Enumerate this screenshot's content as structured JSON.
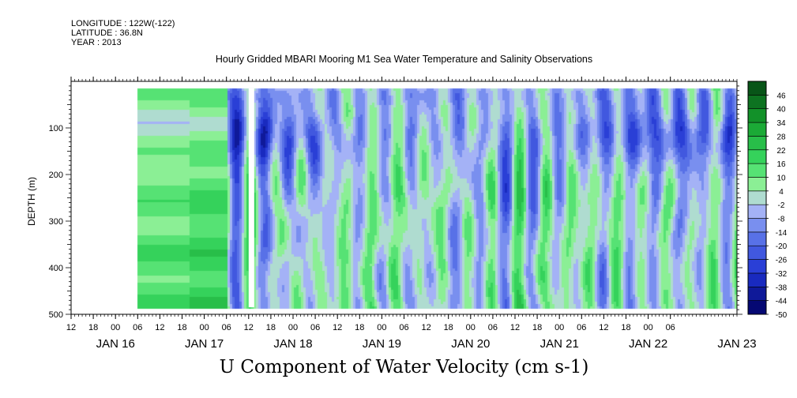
{
  "header": {
    "longitude": "LONGITUDE : 122W(-122)",
    "latitude": "LATITUDE : 36.8N",
    "year": "YEAR : 2013"
  },
  "chart_data": {
    "type": "heatmap",
    "title": "Hourly Gridded MBARI Mooring M1 Sea Water Temperature and Salinity Observations",
    "xlabel": "U Component of Water Velocity (cm s-1)",
    "ylabel": "DEPTH (m)",
    "y_axis": {
      "range": [
        0,
        500
      ],
      "inverted": true,
      "ticks": [
        100,
        200,
        300,
        400,
        500
      ]
    },
    "x_axis": {
      "range_hours": [
        -12,
        168
      ],
      "hour_ticks": [
        {
          "h": 12,
          "label": "12"
        },
        {
          "h": 18,
          "label": "18"
        },
        {
          "h": 0,
          "label": "00"
        },
        {
          "h": 6,
          "label": "06"
        },
        {
          "h": 12,
          "label": "12"
        },
        {
          "h": 18,
          "label": "18"
        },
        {
          "h": 0,
          "label": "00"
        },
        {
          "h": 6,
          "label": "06"
        },
        {
          "h": 12,
          "label": "12"
        },
        {
          "h": 18,
          "label": "18"
        },
        {
          "h": 0,
          "label": "00"
        },
        {
          "h": 6,
          "label": "06"
        },
        {
          "h": 12,
          "label": "12"
        },
        {
          "h": 18,
          "label": "18"
        },
        {
          "h": 0,
          "label": "00"
        },
        {
          "h": 6,
          "label": "06"
        },
        {
          "h": 12,
          "label": "12"
        },
        {
          "h": 18,
          "label": "18"
        },
        {
          "h": 0,
          "label": "00"
        },
        {
          "h": 6,
          "label": "06"
        },
        {
          "h": 12,
          "label": "12"
        },
        {
          "h": 18,
          "label": "18"
        },
        {
          "h": 0,
          "label": "00"
        },
        {
          "h": 6,
          "label": "06"
        },
        {
          "h": 12,
          "label": "12"
        },
        {
          "h": 18,
          "label": "18"
        },
        {
          "h": 0,
          "label": "00"
        },
        {
          "h": 6,
          "label": "06"
        }
      ],
      "date_labels": [
        "JAN 16",
        "JAN 17",
        "JAN 18",
        "JAN 19",
        "JAN 20",
        "JAN 21",
        "JAN 22",
        "JAN 23"
      ]
    },
    "colorbar": {
      "levels": [
        -50,
        -44,
        -38,
        -32,
        -26,
        -20,
        -14,
        -8,
        -2,
        4,
        10,
        16,
        22,
        28,
        34,
        40,
        46
      ],
      "labels": [
        "46",
        "40",
        "34",
        "28",
        "22",
        "16",
        "10",
        "4",
        "-2",
        "-8",
        "-14",
        "-20",
        "-26",
        "-32",
        "-38",
        "-44",
        "-50"
      ]
    },
    "data_extent": {
      "start_hour": 6,
      "end_hour": 168,
      "min_depth_m": 15,
      "max_depth_m": 485
    },
    "data_gaps": [
      {
        "start_hour": 36,
        "end_hour": 37.5
      }
    ]
  }
}
